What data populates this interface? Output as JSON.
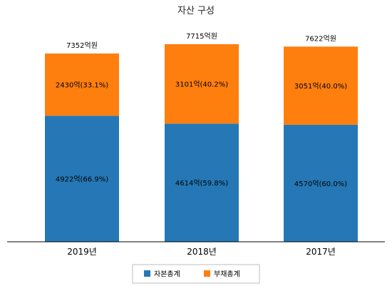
{
  "chart_data": {
    "type": "bar",
    "stacked": true,
    "title": "자산 구성",
    "categories": [
      "2019년",
      "2018년",
      "2017년"
    ],
    "unit": "억",
    "totals": [
      7352,
      7715,
      7622
    ],
    "total_labels": [
      "7352억원",
      "7715억원",
      "7622억원"
    ],
    "series": [
      {
        "name": "자본총계",
        "color": "#2578b5",
        "values": [
          4922,
          4614,
          4570
        ],
        "labels": [
          "4922억(66.9%)",
          "4614억(59.8%)",
          "4570억(60.0%)"
        ]
      },
      {
        "name": "부채총계",
        "color": "#ff7f0e",
        "values": [
          2430,
          3101,
          3051
        ],
        "labels": [
          "2430억(33.1%)",
          "3101억(40.2%)",
          "3051억(40.0%)"
        ]
      }
    ],
    "ylim": [
      0,
      8000
    ],
    "grid": false,
    "legend_position": "bottom"
  }
}
